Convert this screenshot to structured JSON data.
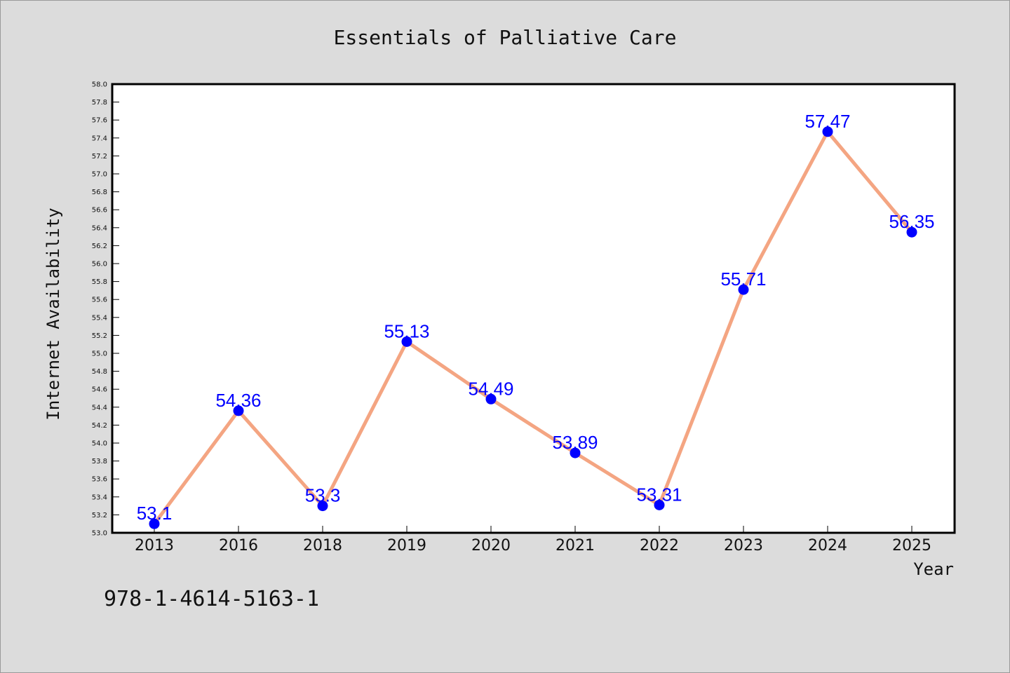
{
  "footer_text": "978-1-4614-5163-1",
  "colors": {
    "background": "#dcdcdc",
    "plot_background": "#ffffff",
    "line": "#f4a582",
    "marker": "#0000ff",
    "label": "#0000ff"
  },
  "chart_data": {
    "type": "line",
    "title": "Essentials of Palliative Care",
    "xlabel": "Year",
    "ylabel": "Internet Availability",
    "ylim": [
      53.0,
      58.0
    ],
    "ytick_step": 0.2,
    "grid": false,
    "categories": [
      "2013",
      "2016",
      "2018",
      "2019",
      "2020",
      "2021",
      "2022",
      "2023",
      "2024",
      "2025"
    ],
    "series": [
      {
        "values": [
          53.1,
          54.36,
          53.3,
          55.13,
          54.49,
          53.89,
          53.31,
          55.71,
          57.47,
          56.35
        ],
        "labels": [
          "53.1",
          "54.36",
          "53.3",
          "55.13",
          "54.49",
          "53.89",
          "53.31",
          "55.71",
          "57.47",
          "56.35"
        ]
      }
    ]
  }
}
